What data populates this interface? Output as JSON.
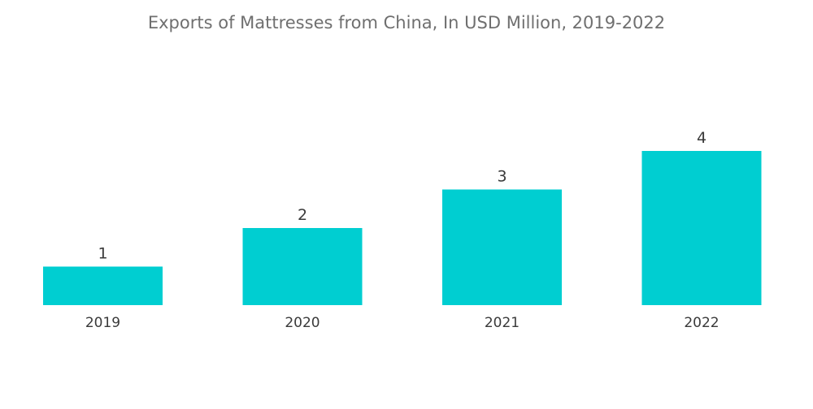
{
  "chart_data": {
    "type": "bar",
    "title": "Exports of Mattresses from China, In USD Million, 2019-2022",
    "categories": [
      "2019",
      "2020",
      "2021",
      "2022"
    ],
    "values": [
      1,
      2,
      3,
      4
    ],
    "data_labels": [
      "1",
      "2",
      "3",
      "4"
    ],
    "xlabel": "",
    "ylabel": "",
    "grid": false,
    "legend": "none",
    "y_axis_visible": false,
    "bar_color": "#00CED1"
  }
}
